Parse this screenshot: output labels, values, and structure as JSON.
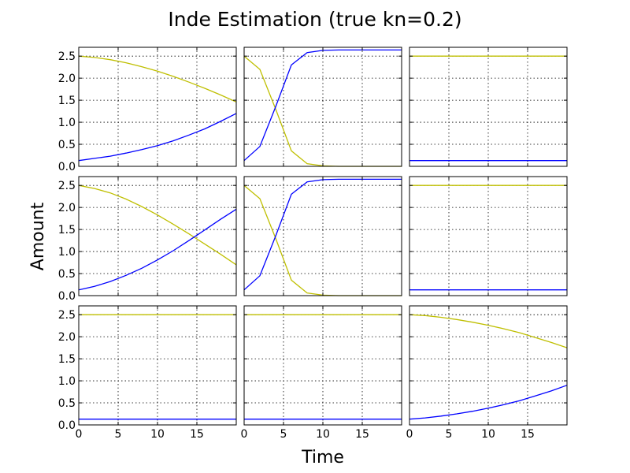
{
  "chart_data": {
    "type": "line",
    "title": "Inde Estimation (true kn=0.2)",
    "xlabel": "Time",
    "ylabel": "Amount",
    "xlim": [
      0,
      20
    ],
    "ylim": [
      0,
      2.7
    ],
    "xticks": [
      0,
      5,
      10,
      15
    ],
    "yticks": [
      0.0,
      0.5,
      1.0,
      1.5,
      2.0,
      2.5
    ],
    "grid": true,
    "legend": "none",
    "layout": {
      "rows": 3,
      "cols": 3
    },
    "colors": {
      "series_a": "#bfbf00",
      "series_b": "#0000ff"
    },
    "x": [
      0,
      2,
      4,
      6,
      8,
      10,
      12,
      14,
      16,
      18,
      20
    ],
    "panels": [
      {
        "series": [
          {
            "color": "series_a",
            "values": [
              2.5,
              2.47,
              2.42,
              2.35,
              2.26,
              2.16,
              2.04,
              1.91,
              1.77,
              1.62,
              1.46
            ]
          },
          {
            "color": "series_b",
            "values": [
              0.13,
              0.18,
              0.23,
              0.3,
              0.38,
              0.47,
              0.58,
              0.71,
              0.85,
              1.02,
              1.2
            ]
          }
        ]
      },
      {
        "series": [
          {
            "color": "series_a",
            "values": [
              2.5,
              2.2,
              1.3,
              0.35,
              0.06,
              0.01,
              0.0,
              0.0,
              0.0,
              0.0,
              0.0
            ]
          },
          {
            "color": "series_b",
            "values": [
              0.13,
              0.45,
              1.35,
              2.3,
              2.58,
              2.63,
              2.64,
              2.64,
              2.64,
              2.64,
              2.64
            ]
          }
        ]
      },
      {
        "series": [
          {
            "color": "series_a",
            "values": [
              2.5,
              2.5,
              2.5,
              2.5,
              2.5,
              2.5,
              2.5,
              2.5,
              2.5,
              2.5,
              2.5
            ]
          },
          {
            "color": "series_b",
            "values": [
              0.13,
              0.13,
              0.13,
              0.13,
              0.13,
              0.13,
              0.13,
              0.13,
              0.13,
              0.13,
              0.13
            ]
          }
        ]
      },
      {
        "series": [
          {
            "color": "series_a",
            "values": [
              2.5,
              2.43,
              2.33,
              2.19,
              2.02,
              1.83,
              1.62,
              1.4,
              1.17,
              0.94,
              0.7
            ]
          },
          {
            "color": "series_b",
            "values": [
              0.13,
              0.21,
              0.32,
              0.46,
              0.62,
              0.81,
              1.02,
              1.25,
              1.49,
              1.73,
              1.96
            ]
          }
        ]
      },
      {
        "series": [
          {
            "color": "series_a",
            "values": [
              2.5,
              2.2,
              1.3,
              0.35,
              0.06,
              0.01,
              0.0,
              0.0,
              0.0,
              0.0,
              0.0
            ]
          },
          {
            "color": "series_b",
            "values": [
              0.13,
              0.45,
              1.35,
              2.3,
              2.58,
              2.63,
              2.64,
              2.64,
              2.64,
              2.64,
              2.64
            ]
          }
        ]
      },
      {
        "series": [
          {
            "color": "series_a",
            "values": [
              2.5,
              2.5,
              2.5,
              2.5,
              2.5,
              2.5,
              2.5,
              2.5,
              2.5,
              2.5,
              2.5
            ]
          },
          {
            "color": "series_b",
            "values": [
              0.13,
              0.13,
              0.13,
              0.13,
              0.13,
              0.13,
              0.13,
              0.13,
              0.13,
              0.13,
              0.13
            ]
          }
        ]
      },
      {
        "series": [
          {
            "color": "series_a",
            "values": [
              2.5,
              2.5,
              2.5,
              2.5,
              2.5,
              2.5,
              2.5,
              2.5,
              2.5,
              2.5,
              2.5
            ]
          },
          {
            "color": "series_b",
            "values": [
              0.13,
              0.13,
              0.13,
              0.13,
              0.13,
              0.13,
              0.13,
              0.13,
              0.13,
              0.13,
              0.13
            ]
          }
        ]
      },
      {
        "series": [
          {
            "color": "series_a",
            "values": [
              2.5,
              2.5,
              2.5,
              2.5,
              2.5,
              2.5,
              2.5,
              2.5,
              2.5,
              2.5,
              2.5
            ]
          },
          {
            "color": "series_b",
            "values": [
              0.13,
              0.13,
              0.13,
              0.13,
              0.13,
              0.13,
              0.13,
              0.13,
              0.13,
              0.13,
              0.13
            ]
          }
        ]
      },
      {
        "series": [
          {
            "color": "series_a",
            "values": [
              2.5,
              2.48,
              2.44,
              2.39,
              2.33,
              2.26,
              2.18,
              2.09,
              1.98,
              1.87,
              1.75
            ]
          },
          {
            "color": "series_b",
            "values": [
              0.13,
              0.16,
              0.2,
              0.25,
              0.31,
              0.38,
              0.46,
              0.55,
              0.66,
              0.77,
              0.9
            ]
          }
        ]
      }
    ]
  }
}
